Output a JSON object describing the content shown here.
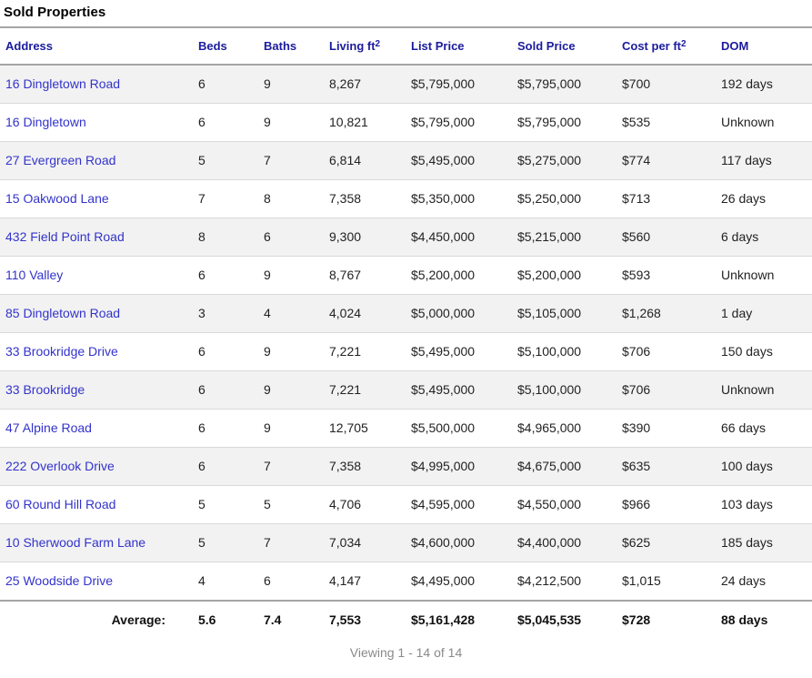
{
  "page": {
    "title": "Sold Properties",
    "viewing_status": "Viewing 1 - 14 of 14"
  },
  "colors": {
    "header_link": "#1b1b9e",
    "address_link": "#3333cc",
    "row_stripe": "#f2f2f2",
    "divider": "#a5a5a5",
    "row_border": "#d9d9d9",
    "body_text": "#222222",
    "muted_text": "#8a8a8a"
  },
  "table": {
    "headers": [
      {
        "label": "Address"
      },
      {
        "label": "Beds"
      },
      {
        "label": "Baths"
      },
      {
        "label": "Living ft",
        "sup": "2"
      },
      {
        "label": "List Price"
      },
      {
        "label": "Sold Price"
      },
      {
        "label": "Cost per ft",
        "sup": "2"
      },
      {
        "label": "DOM"
      }
    ],
    "rows": [
      [
        "16 Dingletown Road",
        "6",
        "9",
        "8,267",
        "$5,795,000",
        "$5,795,000",
        "$700",
        "192 days"
      ],
      [
        "16 Dingletown",
        "6",
        "9",
        "10,821",
        "$5,795,000",
        "$5,795,000",
        "$535",
        "Unknown"
      ],
      [
        "27 Evergreen Road",
        "5",
        "7",
        "6,814",
        "$5,495,000",
        "$5,275,000",
        "$774",
        "117 days"
      ],
      [
        "15 Oakwood Lane",
        "7",
        "8",
        "7,358",
        "$5,350,000",
        "$5,250,000",
        "$713",
        "26 days"
      ],
      [
        "432 Field Point Road",
        "8",
        "6",
        "9,300",
        "$4,450,000",
        "$5,215,000",
        "$560",
        "6 days"
      ],
      [
        "110 Valley",
        "6",
        "9",
        "8,767",
        "$5,200,000",
        "$5,200,000",
        "$593",
        "Unknown"
      ],
      [
        "85 Dingletown Road",
        "3",
        "4",
        "4,024",
        "$5,000,000",
        "$5,105,000",
        "$1,268",
        "1 day"
      ],
      [
        "33 Brookridge Drive",
        "6",
        "9",
        "7,221",
        "$5,495,000",
        "$5,100,000",
        "$706",
        "150 days"
      ],
      [
        "33 Brookridge",
        "6",
        "9",
        "7,221",
        "$5,495,000",
        "$5,100,000",
        "$706",
        "Unknown"
      ],
      [
        "47 Alpine Road",
        "6",
        "9",
        "12,705",
        "$5,500,000",
        "$4,965,000",
        "$390",
        "66 days"
      ],
      [
        "222 Overlook Drive",
        "6",
        "7",
        "7,358",
        "$4,995,000",
        "$4,675,000",
        "$635",
        "100 days"
      ],
      [
        "60 Round Hill Road",
        "5",
        "5",
        "4,706",
        "$4,595,000",
        "$4,550,000",
        "$966",
        "103 days"
      ],
      [
        "10 Sherwood Farm Lane",
        "5",
        "7",
        "7,034",
        "$4,600,000",
        "$4,400,000",
        "$625",
        "185 days"
      ],
      [
        "25 Woodside Drive",
        "4",
        "6",
        "4,147",
        "$4,495,000",
        "$4,212,500",
        "$1,015",
        "24 days"
      ]
    ],
    "average": {
      "label": "Average:",
      "beds": "5.6",
      "baths": "7.4",
      "living": "7,553",
      "list_price": "$5,161,428",
      "sold_price": "$5,045,535",
      "cost_per_ft": "$728",
      "dom": "88 days"
    }
  }
}
